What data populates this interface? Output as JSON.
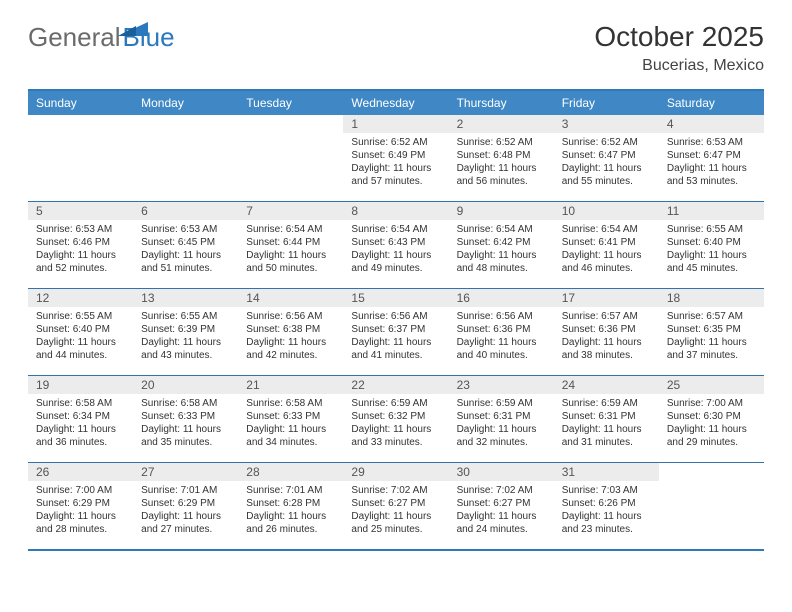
{
  "brand": {
    "part1": "General",
    "part2": "Blue"
  },
  "title": "October 2025",
  "subtitle": "Bucerias, Mexico",
  "colors": {
    "header_bg": "#3f88c5",
    "header_text": "#ffffff",
    "rule": "#2f79b6",
    "daynum_bg": "#ececec",
    "text": "#333333"
  },
  "days_of_week": [
    "Sunday",
    "Monday",
    "Tuesday",
    "Wednesday",
    "Thursday",
    "Friday",
    "Saturday"
  ],
  "weeks": [
    [
      {
        "n": "",
        "sr": "",
        "ss": "",
        "dl": ""
      },
      {
        "n": "",
        "sr": "",
        "ss": "",
        "dl": ""
      },
      {
        "n": "",
        "sr": "",
        "ss": "",
        "dl": ""
      },
      {
        "n": "1",
        "sr": "Sunrise: 6:52 AM",
        "ss": "Sunset: 6:49 PM",
        "dl": "Daylight: 11 hours and 57 minutes."
      },
      {
        "n": "2",
        "sr": "Sunrise: 6:52 AM",
        "ss": "Sunset: 6:48 PM",
        "dl": "Daylight: 11 hours and 56 minutes."
      },
      {
        "n": "3",
        "sr": "Sunrise: 6:52 AM",
        "ss": "Sunset: 6:47 PM",
        "dl": "Daylight: 11 hours and 55 minutes."
      },
      {
        "n": "4",
        "sr": "Sunrise: 6:53 AM",
        "ss": "Sunset: 6:47 PM",
        "dl": "Daylight: 11 hours and 53 minutes."
      }
    ],
    [
      {
        "n": "5",
        "sr": "Sunrise: 6:53 AM",
        "ss": "Sunset: 6:46 PM",
        "dl": "Daylight: 11 hours and 52 minutes."
      },
      {
        "n": "6",
        "sr": "Sunrise: 6:53 AM",
        "ss": "Sunset: 6:45 PM",
        "dl": "Daylight: 11 hours and 51 minutes."
      },
      {
        "n": "7",
        "sr": "Sunrise: 6:54 AM",
        "ss": "Sunset: 6:44 PM",
        "dl": "Daylight: 11 hours and 50 minutes."
      },
      {
        "n": "8",
        "sr": "Sunrise: 6:54 AM",
        "ss": "Sunset: 6:43 PM",
        "dl": "Daylight: 11 hours and 49 minutes."
      },
      {
        "n": "9",
        "sr": "Sunrise: 6:54 AM",
        "ss": "Sunset: 6:42 PM",
        "dl": "Daylight: 11 hours and 48 minutes."
      },
      {
        "n": "10",
        "sr": "Sunrise: 6:54 AM",
        "ss": "Sunset: 6:41 PM",
        "dl": "Daylight: 11 hours and 46 minutes."
      },
      {
        "n": "11",
        "sr": "Sunrise: 6:55 AM",
        "ss": "Sunset: 6:40 PM",
        "dl": "Daylight: 11 hours and 45 minutes."
      }
    ],
    [
      {
        "n": "12",
        "sr": "Sunrise: 6:55 AM",
        "ss": "Sunset: 6:40 PM",
        "dl": "Daylight: 11 hours and 44 minutes."
      },
      {
        "n": "13",
        "sr": "Sunrise: 6:55 AM",
        "ss": "Sunset: 6:39 PM",
        "dl": "Daylight: 11 hours and 43 minutes."
      },
      {
        "n": "14",
        "sr": "Sunrise: 6:56 AM",
        "ss": "Sunset: 6:38 PM",
        "dl": "Daylight: 11 hours and 42 minutes."
      },
      {
        "n": "15",
        "sr": "Sunrise: 6:56 AM",
        "ss": "Sunset: 6:37 PM",
        "dl": "Daylight: 11 hours and 41 minutes."
      },
      {
        "n": "16",
        "sr": "Sunrise: 6:56 AM",
        "ss": "Sunset: 6:36 PM",
        "dl": "Daylight: 11 hours and 40 minutes."
      },
      {
        "n": "17",
        "sr": "Sunrise: 6:57 AM",
        "ss": "Sunset: 6:36 PM",
        "dl": "Daylight: 11 hours and 38 minutes."
      },
      {
        "n": "18",
        "sr": "Sunrise: 6:57 AM",
        "ss": "Sunset: 6:35 PM",
        "dl": "Daylight: 11 hours and 37 minutes."
      }
    ],
    [
      {
        "n": "19",
        "sr": "Sunrise: 6:58 AM",
        "ss": "Sunset: 6:34 PM",
        "dl": "Daylight: 11 hours and 36 minutes."
      },
      {
        "n": "20",
        "sr": "Sunrise: 6:58 AM",
        "ss": "Sunset: 6:33 PM",
        "dl": "Daylight: 11 hours and 35 minutes."
      },
      {
        "n": "21",
        "sr": "Sunrise: 6:58 AM",
        "ss": "Sunset: 6:33 PM",
        "dl": "Daylight: 11 hours and 34 minutes."
      },
      {
        "n": "22",
        "sr": "Sunrise: 6:59 AM",
        "ss": "Sunset: 6:32 PM",
        "dl": "Daylight: 11 hours and 33 minutes."
      },
      {
        "n": "23",
        "sr": "Sunrise: 6:59 AM",
        "ss": "Sunset: 6:31 PM",
        "dl": "Daylight: 11 hours and 32 minutes."
      },
      {
        "n": "24",
        "sr": "Sunrise: 6:59 AM",
        "ss": "Sunset: 6:31 PM",
        "dl": "Daylight: 11 hours and 31 minutes."
      },
      {
        "n": "25",
        "sr": "Sunrise: 7:00 AM",
        "ss": "Sunset: 6:30 PM",
        "dl": "Daylight: 11 hours and 29 minutes."
      }
    ],
    [
      {
        "n": "26",
        "sr": "Sunrise: 7:00 AM",
        "ss": "Sunset: 6:29 PM",
        "dl": "Daylight: 11 hours and 28 minutes."
      },
      {
        "n": "27",
        "sr": "Sunrise: 7:01 AM",
        "ss": "Sunset: 6:29 PM",
        "dl": "Daylight: 11 hours and 27 minutes."
      },
      {
        "n": "28",
        "sr": "Sunrise: 7:01 AM",
        "ss": "Sunset: 6:28 PM",
        "dl": "Daylight: 11 hours and 26 minutes."
      },
      {
        "n": "29",
        "sr": "Sunrise: 7:02 AM",
        "ss": "Sunset: 6:27 PM",
        "dl": "Daylight: 11 hours and 25 minutes."
      },
      {
        "n": "30",
        "sr": "Sunrise: 7:02 AM",
        "ss": "Sunset: 6:27 PM",
        "dl": "Daylight: 11 hours and 24 minutes."
      },
      {
        "n": "31",
        "sr": "Sunrise: 7:03 AM",
        "ss": "Sunset: 6:26 PM",
        "dl": "Daylight: 11 hours and 23 minutes."
      },
      {
        "n": "",
        "sr": "",
        "ss": "",
        "dl": ""
      }
    ]
  ]
}
